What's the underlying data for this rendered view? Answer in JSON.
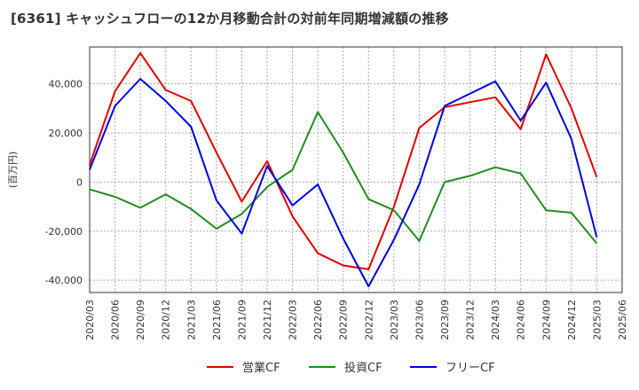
{
  "chart_data": {
    "type": "line",
    "title": "[6361]  キャッシュフローの12か月移動合計の対前年同期増減額の推移",
    "ylabel": "(百万円)",
    "xlabel": "",
    "ylim": [
      -45000,
      55000
    ],
    "y_ticks": [
      40000,
      20000,
      0,
      -20000,
      -40000
    ],
    "y_tick_labels": [
      "40,000",
      "20,000",
      "0",
      "-20,000",
      "-40,000"
    ],
    "x": [
      "2020/03",
      "2020/06",
      "2020/09",
      "2020/12",
      "2021/03",
      "2021/06",
      "2021/09",
      "2021/12",
      "2022/03",
      "2022/06",
      "2022/09",
      "2022/12",
      "2023/03",
      "2023/06",
      "2023/09",
      "2023/12",
      "2024/03",
      "2024/06",
      "2024/09",
      "2024/12",
      "2025/03",
      "2025/06"
    ],
    "grid": true,
    "legend_position": "bottom",
    "series": [
      {
        "name": "営業CF",
        "color": "#dd0000",
        "values": [
          7000,
          37000,
          52500,
          37500,
          33000,
          12000,
          -8000,
          8500,
          -14000,
          -29000,
          -34000,
          -35500,
          -10000,
          22000,
          30500,
          32500,
          34500,
          21500,
          52000,
          30000,
          2000,
          null
        ]
      },
      {
        "name": "投資CF",
        "color": "#228b22",
        "values": [
          -3000,
          -6000,
          -10500,
          -5000,
          -11000,
          -19000,
          -13000,
          -2000,
          5000,
          28500,
          12000,
          -7000,
          -11500,
          -24000,
          0,
          2500,
          6000,
          3500,
          -11500,
          -12500,
          -25000,
          null
        ]
      },
      {
        "name": "フリーCF",
        "color": "#0000dd",
        "values": [
          5000,
          31000,
          42000,
          33000,
          22500,
          -7500,
          -21000,
          6500,
          -9500,
          -1000,
          -23000,
          -42500,
          -23500,
          -1000,
          31000,
          36000,
          41000,
          25000,
          40500,
          17500,
          -22500,
          null
        ]
      }
    ]
  }
}
